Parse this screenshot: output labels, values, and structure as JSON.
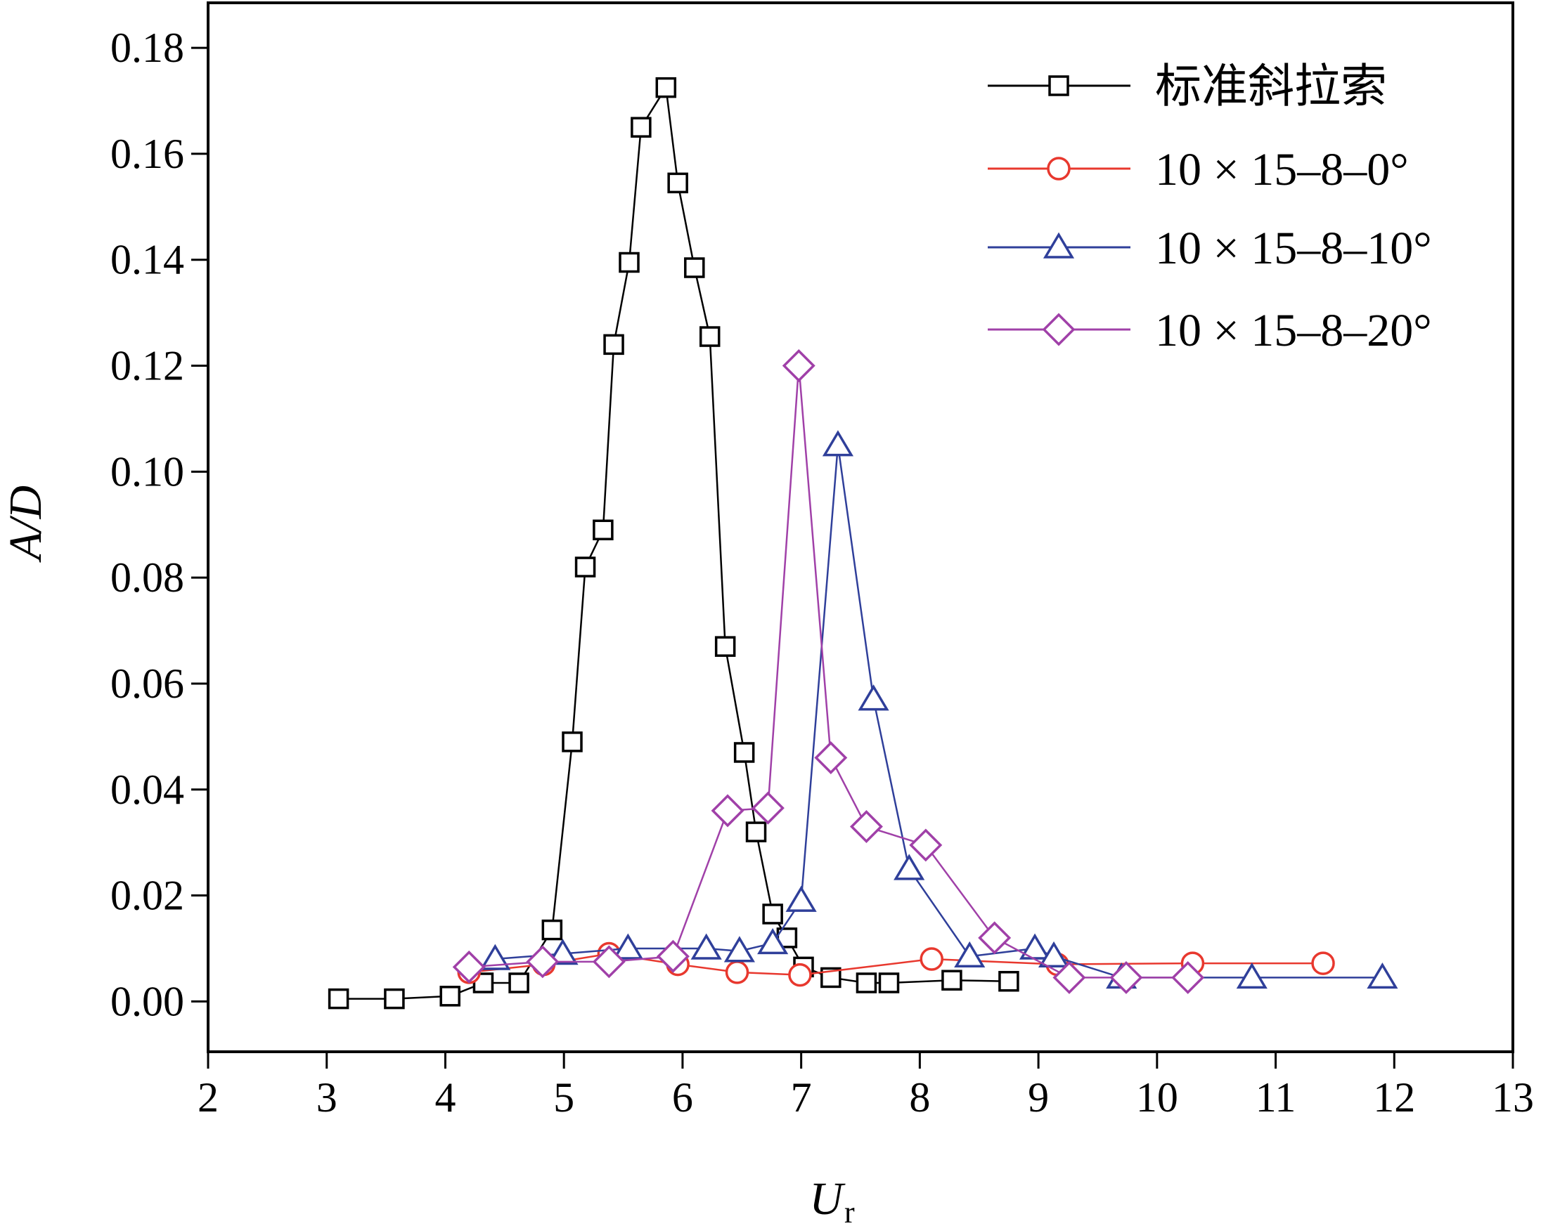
{
  "chart_data": {
    "type": "line",
    "xlabel": "U",
    "xlabel_sub": "r",
    "ylabel": "A/D",
    "xlim": [
      2,
      13
    ],
    "ylim": [
      -0.0095,
      0.1885
    ],
    "xticks": [
      2,
      3,
      4,
      5,
      6,
      7,
      8,
      9,
      10,
      11,
      12,
      13
    ],
    "xtick_labels": [
      "2",
      "3",
      "4",
      "5",
      "6",
      "7",
      "8",
      "9",
      "10",
      "11",
      "12",
      "13"
    ],
    "yticks": [
      0,
      0.02,
      0.04,
      0.06,
      0.08,
      0.1,
      0.12,
      0.14,
      0.16,
      0.18
    ],
    "ytick_labels": [
      "0.00",
      "0.02",
      "0.04",
      "0.06",
      "0.08",
      "0.10",
      "0.12",
      "0.14",
      "0.16",
      "0.18"
    ],
    "grid": false,
    "legend_position": "top-right",
    "series": [
      {
        "name": "标准斜拉索",
        "color": "#000000",
        "marker": "square",
        "x": [
          3.1,
          3.57,
          4.04,
          4.32,
          4.62,
          4.9,
          5.07,
          5.18,
          5.33,
          5.42,
          5.55,
          5.65,
          5.86,
          5.96,
          6.1,
          6.23,
          6.36,
          6.52,
          6.62,
          6.76,
          6.88,
          7.02,
          7.25,
          7.55,
          7.74,
          8.27,
          8.75
        ],
        "y": [
          0.0005,
          0.0005,
          0.001,
          0.0035,
          0.0035,
          0.0135,
          0.049,
          0.082,
          0.089,
          0.124,
          0.1395,
          0.165,
          0.1725,
          0.1545,
          0.1385,
          0.1255,
          0.067,
          0.047,
          0.032,
          0.0165,
          0.012,
          0.0065,
          0.0045,
          0.0035,
          0.0035,
          0.004,
          0.0038
        ]
      },
      {
        "name": "10 × 15–8–0°",
        "color": "#e8382e",
        "marker": "circle",
        "x": [
          4.2,
          4.83,
          5.38,
          5.96,
          6.46,
          6.99,
          8.1,
          9.16,
          10.3,
          11.4
        ],
        "y": [
          0.0055,
          0.007,
          0.009,
          0.007,
          0.0055,
          0.005,
          0.008,
          0.007,
          0.0072,
          0.0072
        ]
      },
      {
        "name": "10 × 15–8–10°",
        "color": "#2f3f9a",
        "marker": "triangle",
        "x": [
          4.42,
          4.99,
          5.54,
          6.2,
          6.48,
          6.76,
          7.0,
          7.31,
          7.61,
          7.91,
          8.42,
          8.97,
          9.13,
          9.7,
          10.8,
          11.9
        ],
        "y": [
          0.008,
          0.009,
          0.01,
          0.01,
          0.0095,
          0.011,
          0.019,
          0.105,
          0.057,
          0.025,
          0.0085,
          0.01,
          0.0085,
          0.0045,
          0.0045,
          0.0045
        ]
      },
      {
        "name": "10 × 15–8–20°",
        "color": "#a040a8",
        "marker": "diamond",
        "x": [
          4.2,
          4.82,
          5.38,
          5.92,
          6.38,
          6.72,
          6.98,
          7.25,
          7.55,
          8.05,
          8.63,
          9.26,
          9.74,
          10.26
        ],
        "y": [
          0.0065,
          0.0075,
          0.0075,
          0.0085,
          0.036,
          0.0365,
          0.12,
          0.046,
          0.033,
          0.0295,
          0.012,
          0.0045,
          0.0045,
          0.0045
        ]
      }
    ]
  }
}
